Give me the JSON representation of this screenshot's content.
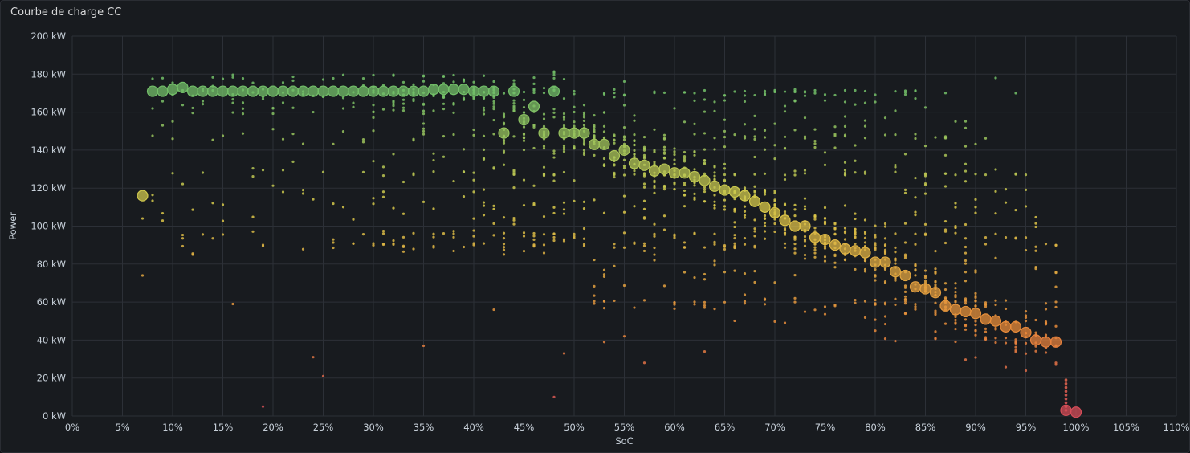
{
  "panel": {
    "title": "Courbe de charge CC"
  },
  "chart_data": {
    "type": "scatter",
    "title": "Courbe de charge CC",
    "xlabel": "SoC",
    "ylabel": "Power",
    "xlim": [
      0,
      110
    ],
    "ylim": [
      0,
      200
    ],
    "x_ticks": [
      "0%",
      "5%",
      "10%",
      "15%",
      "20%",
      "25%",
      "30%",
      "35%",
      "40%",
      "45%",
      "50%",
      "55%",
      "60%",
      "65%",
      "70%",
      "75%",
      "80%",
      "85%",
      "90%",
      "95%",
      "100%",
      "105%",
      "110%"
    ],
    "y_ticks": [
      "0 kW",
      "20 kW",
      "40 kW",
      "60 kW",
      "80 kW",
      "100 kW",
      "120 kW",
      "140 kW",
      "160 kW",
      "180 kW",
      "200 kW"
    ],
    "grid": true,
    "legend": "none",
    "color_scale": {
      "low": "#d44a5a",
      "mid_low": "#e8893a",
      "mid": "#d9c94a",
      "high": "#73bf69"
    },
    "main_series": [
      [
        7,
        116
      ],
      [
        8,
        171
      ],
      [
        9,
        171
      ],
      [
        10,
        172
      ],
      [
        11,
        173
      ],
      [
        12,
        171
      ],
      [
        13,
        171
      ],
      [
        14,
        171
      ],
      [
        15,
        171
      ],
      [
        16,
        171
      ],
      [
        17,
        171
      ],
      [
        18,
        171
      ],
      [
        19,
        171
      ],
      [
        20,
        171
      ],
      [
        21,
        171
      ],
      [
        22,
        171
      ],
      [
        23,
        171
      ],
      [
        24,
        171
      ],
      [
        25,
        171
      ],
      [
        26,
        171
      ],
      [
        27,
        171
      ],
      [
        28,
        171
      ],
      [
        29,
        171
      ],
      [
        30,
        171
      ],
      [
        31,
        171
      ],
      [
        32,
        171
      ],
      [
        33,
        171
      ],
      [
        34,
        171
      ],
      [
        35,
        171
      ],
      [
        36,
        172
      ],
      [
        37,
        172
      ],
      [
        38,
        172
      ],
      [
        39,
        172
      ],
      [
        40,
        171
      ],
      [
        41,
        171
      ],
      [
        42,
        171
      ],
      [
        43,
        149
      ],
      [
        44,
        171
      ],
      [
        45,
        156
      ],
      [
        46,
        163
      ],
      [
        47,
        149
      ],
      [
        48,
        171
      ],
      [
        49,
        149
      ],
      [
        50,
        149
      ],
      [
        51,
        149
      ],
      [
        52,
        143
      ],
      [
        53,
        143
      ],
      [
        54,
        137
      ],
      [
        55,
        140
      ],
      [
        56,
        133
      ],
      [
        57,
        132
      ],
      [
        58,
        129
      ],
      [
        59,
        130
      ],
      [
        60,
        128
      ],
      [
        61,
        128
      ],
      [
        62,
        126
      ],
      [
        63,
        124
      ],
      [
        64,
        121
      ],
      [
        65,
        119
      ],
      [
        66,
        118
      ],
      [
        67,
        116
      ],
      [
        68,
        113
      ],
      [
        69,
        110
      ],
      [
        70,
        107
      ],
      [
        71,
        103
      ],
      [
        72,
        100
      ],
      [
        73,
        100
      ],
      [
        74,
        94
      ],
      [
        75,
        93
      ],
      [
        76,
        90
      ],
      [
        77,
        88
      ],
      [
        78,
        87
      ],
      [
        79,
        86
      ],
      [
        80,
        81
      ],
      [
        81,
        81
      ],
      [
        82,
        76
      ],
      [
        83,
        74
      ],
      [
        84,
        68
      ],
      [
        85,
        67
      ],
      [
        86,
        65
      ],
      [
        87,
        58
      ],
      [
        88,
        56
      ],
      [
        89,
        55
      ],
      [
        90,
        54
      ],
      [
        91,
        51
      ],
      [
        92,
        50
      ],
      [
        93,
        47
      ],
      [
        94,
        47
      ],
      [
        95,
        44
      ],
      [
        96,
        40
      ],
      [
        97,
        39
      ],
      [
        98,
        39
      ],
      [
        99,
        3
      ],
      [
        100,
        2
      ]
    ]
  }
}
